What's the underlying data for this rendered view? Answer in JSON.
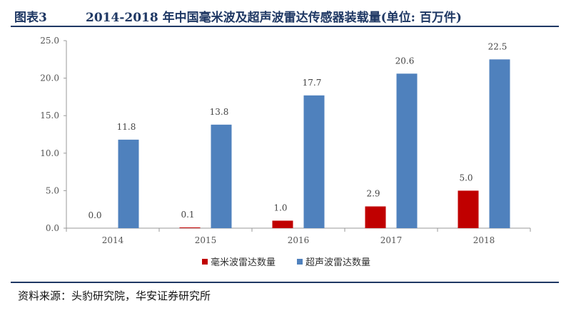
{
  "header": {
    "fig_label": "图表3",
    "title": "2014-2018 年中国毫米波及超声波雷达传感器装载量(单位: 百万件)"
  },
  "source": "资料来源：头豹研究院，华安证券研究所",
  "chart_data": {
    "type": "bar",
    "categories": [
      "2014",
      "2015",
      "2016",
      "2017",
      "2018"
    ],
    "series": [
      {
        "name": "毫米波雷达数量",
        "color": "#c00000",
        "values": [
          0.0,
          0.1,
          1.0,
          2.9,
          5.0
        ],
        "labels": [
          "0.0",
          "0.1",
          "1.0",
          "2.9",
          "5.0"
        ]
      },
      {
        "name": "超声波雷达数量",
        "color": "#4f81bd",
        "values": [
          11.8,
          13.8,
          17.7,
          20.6,
          22.5
        ],
        "labels": [
          "11.8",
          "13.8",
          "17.7",
          "20.6",
          "22.5"
        ]
      }
    ],
    "ylim": [
      0,
      25
    ],
    "yticks": [
      "0.0",
      "5.0",
      "10.0",
      "15.0",
      "20.0",
      "25.0"
    ],
    "grid": false,
    "legend": "bottom"
  }
}
